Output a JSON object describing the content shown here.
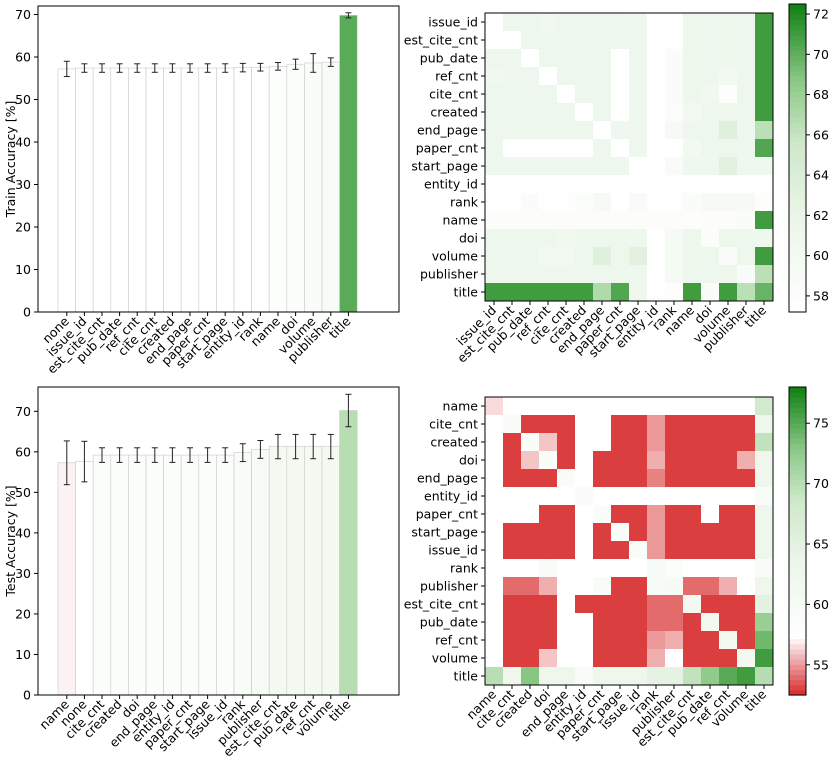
{
  "chart_data": [
    {
      "type": "bar",
      "id": "train-bar",
      "ylabel": "Train Accuracy [%]",
      "xlabel": "",
      "ylim": [
        0,
        72
      ],
      "yticks": [
        0,
        10,
        20,
        30,
        40,
        50,
        60,
        70
      ],
      "categories": [
        "none",
        "issue_id",
        "est_cite_cnt",
        "pub_date",
        "ref_cnt",
        "cite_cnt",
        "created",
        "end_page",
        "paper_cnt",
        "start_page",
        "entity_id",
        "rank",
        "name",
        "doi",
        "volume",
        "publisher",
        "title"
      ],
      "values": [
        57.2,
        57.4,
        57.4,
        57.4,
        57.4,
        57.4,
        57.4,
        57.4,
        57.4,
        57.4,
        57.5,
        57.6,
        57.8,
        58.3,
        58.6,
        58.8,
        69.8
      ],
      "errors": [
        1.8,
        1.0,
        1.0,
        1.0,
        1.0,
        1.0,
        1.0,
        1.0,
        1.0,
        1.0,
        1.0,
        0.9,
        0.9,
        1.2,
        2.2,
        1.0,
        0.6
      ],
      "colorbar_range": [
        57.2,
        72
      ]
    },
    {
      "type": "heatmap",
      "id": "train-heatmap",
      "labels": [
        "issue_id",
        "est_cite_cnt",
        "pub_date",
        "ref_cnt",
        "cite_cnt",
        "created",
        "end_page",
        "paper_cnt",
        "start_page",
        "entity_id",
        "rank",
        "name",
        "doi",
        "volume",
        "publisher",
        "title"
      ],
      "colorbar": {
        "min": 57.2,
        "max": 72.5,
        "ticks": [
          58,
          60,
          62,
          64,
          66,
          68,
          70,
          72
        ]
      },
      "values": [
        [
          57.4,
          61.2,
          61.2,
          60.8,
          61.2,
          61.2,
          61.2,
          61.2,
          61.0,
          57.4,
          57.5,
          61.5,
          61.2,
          61.5,
          61.2,
          71.0
        ],
        [
          57.4,
          57.4,
          61.2,
          61.2,
          61.2,
          61.2,
          61.2,
          61.2,
          61.0,
          57.4,
          57.5,
          61.5,
          61.2,
          61.5,
          61.2,
          71.0
        ],
        [
          61.2,
          61.2,
          57.4,
          61.2,
          61.2,
          61.2,
          61.2,
          57.6,
          61.0,
          57.4,
          58.5,
          61.5,
          61.2,
          61.5,
          61.2,
          71.0
        ],
        [
          60.8,
          61.2,
          61.2,
          57.4,
          61.2,
          61.2,
          61.2,
          57.6,
          61.0,
          57.4,
          58.5,
          61.5,
          61.2,
          60.5,
          61.2,
          71.0
        ],
        [
          61.2,
          61.2,
          61.2,
          61.2,
          57.4,
          61.2,
          61.2,
          57.6,
          61.0,
          57.4,
          58.5,
          61.5,
          60.8,
          57.8,
          61.2,
          71.0
        ],
        [
          61.2,
          61.2,
          61.2,
          61.2,
          61.2,
          57.4,
          61.2,
          57.6,
          61.0,
          57.4,
          58.2,
          60.5,
          61.2,
          61.5,
          61.2,
          71.0
        ],
        [
          61.2,
          61.2,
          61.2,
          61.2,
          61.2,
          61.2,
          57.4,
          61.0,
          61.0,
          57.4,
          59.5,
          61.5,
          61.2,
          63.5,
          61.2,
          66.5
        ],
        [
          61.2,
          57.6,
          57.6,
          57.6,
          57.6,
          57.6,
          61.0,
          57.4,
          61.0,
          57.4,
          52.0,
          60.5,
          61.2,
          61.5,
          61.2,
          70.5
        ],
        [
          61.0,
          61.0,
          61.0,
          61.0,
          61.0,
          61.0,
          61.0,
          61.0,
          57.4,
          57.4,
          59.0,
          61.0,
          61.0,
          63.0,
          61.0,
          61.0
        ],
        [
          57.4,
          57.4,
          57.4,
          57.4,
          57.4,
          57.4,
          57.4,
          57.4,
          57.4,
          57.5,
          57.5,
          57.5,
          57.5,
          57.5,
          57.5,
          57.5
        ],
        [
          57.5,
          57.5,
          58.5,
          57.5,
          57.5,
          58.2,
          59.5,
          52.0,
          59.0,
          57.5,
          57.6,
          58.5,
          59.5,
          59.5,
          59.5,
          57.8
        ],
        [
          58.0,
          58.0,
          58.0,
          58.0,
          58.0,
          58.0,
          58.0,
          58.0,
          58.0,
          58.0,
          58.0,
          57.8,
          58.0,
          58.0,
          58.5,
          71.0
        ],
        [
          61.2,
          61.2,
          61.2,
          61.2,
          60.8,
          61.2,
          61.2,
          61.2,
          61.0,
          57.5,
          59.5,
          61.5,
          58.3,
          61.5,
          61.2,
          61.0
        ],
        [
          61.5,
          61.5,
          61.5,
          60.5,
          60.5,
          61.5,
          63.5,
          61.5,
          63.0,
          57.5,
          59.5,
          61.5,
          61.5,
          58.6,
          61.5,
          71.0
        ],
        [
          61.2,
          61.2,
          61.2,
          61.2,
          61.2,
          61.2,
          61.2,
          61.2,
          61.0,
          57.5,
          59.5,
          61.5,
          61.2,
          61.5,
          58.8,
          66.5
        ],
        [
          71.0,
          71.0,
          71.0,
          71.0,
          71.0,
          71.0,
          67.0,
          70.5,
          61.0,
          57.5,
          57.8,
          71.0,
          58.5,
          71.0,
          66.5,
          69.8
        ]
      ]
    },
    {
      "type": "bar",
      "id": "test-bar",
      "ylabel": "Test Accuracy [%]",
      "xlabel": "",
      "ylim": [
        0,
        76
      ],
      "yticks": [
        0,
        10,
        20,
        30,
        40,
        50,
        60,
        70
      ],
      "categories": [
        "name",
        "none",
        "cite_cnt",
        "created",
        "doi",
        "end_page",
        "entity_id",
        "paper_cnt",
        "start_page",
        "issue_id",
        "rank",
        "publisher",
        "est_cite_cnt",
        "pub_date",
        "ref_cnt",
        "volume",
        "title"
      ],
      "values": [
        57.3,
        57.6,
        59.2,
        59.2,
        59.2,
        59.2,
        59.2,
        59.2,
        59.2,
        59.2,
        59.8,
        60.6,
        61.3,
        61.3,
        61.3,
        61.3,
        70.2
      ],
      "errors": [
        5.4,
        5.0,
        1.8,
        1.8,
        1.8,
        1.8,
        1.8,
        1.8,
        1.8,
        1.8,
        2.2,
        2.2,
        3.0,
        3.0,
        3.0,
        3.0,
        4.0
      ],
      "colorbar_range": [
        52.5,
        78
      ]
    },
    {
      "type": "heatmap",
      "id": "test-heatmap",
      "labels": [
        "name",
        "cite_cnt",
        "created",
        "doi",
        "end_page",
        "entity_id",
        "paper_cnt",
        "start_page",
        "issue_id",
        "rank",
        "publisher",
        "est_cite_cnt",
        "pub_date",
        "ref_cnt",
        "volume",
        "title"
      ],
      "colorbar": {
        "min": 52.5,
        "max": 78,
        "ticks": [
          55,
          60,
          65,
          70,
          75
        ]
      },
      "values": [
        [
          56.5,
          57.3,
          57.3,
          57.3,
          57.3,
          57.3,
          57.3,
          57.3,
          57.3,
          57.3,
          57.3,
          57.3,
          57.3,
          57.3,
          57.3,
          68.0
        ],
        [
          57.3,
          59.2,
          53.0,
          53.0,
          53.0,
          57.3,
          57.3,
          53.0,
          53.0,
          55.0,
          53.0,
          53.0,
          53.0,
          53.0,
          53.0,
          62.5
        ],
        [
          57.3,
          53.0,
          59.2,
          56.0,
          53.0,
          57.3,
          57.3,
          53.0,
          53.0,
          55.0,
          53.0,
          53.0,
          53.0,
          53.0,
          53.0,
          69.5
        ],
        [
          57.3,
          53.0,
          56.0,
          59.2,
          53.0,
          57.3,
          53.0,
          53.0,
          53.0,
          55.5,
          53.0,
          53.0,
          53.0,
          53.0,
          55.5,
          62.5
        ],
        [
          57.3,
          53.0,
          53.0,
          53.0,
          59.2,
          57.3,
          53.0,
          53.0,
          53.0,
          54.5,
          53.0,
          53.0,
          53.0,
          53.0,
          53.0,
          62.5
        ],
        [
          57.3,
          57.3,
          57.3,
          57.3,
          57.3,
          59.2,
          57.3,
          57.3,
          57.3,
          57.3,
          57.3,
          57.3,
          57.3,
          57.3,
          57.3,
          59.5
        ],
        [
          57.3,
          57.3,
          57.3,
          53.0,
          53.0,
          57.3,
          59.2,
          53.0,
          53.0,
          55.0,
          53.0,
          53.0,
          57.3,
          53.0,
          53.0,
          62.5
        ],
        [
          57.3,
          53.0,
          53.0,
          53.0,
          53.0,
          57.3,
          53.0,
          59.2,
          53.0,
          55.0,
          53.0,
          53.0,
          53.0,
          53.0,
          53.0,
          62.5
        ],
        [
          57.3,
          53.0,
          53.0,
          53.0,
          53.0,
          57.3,
          53.0,
          53.0,
          59.2,
          55.0,
          53.0,
          53.0,
          53.0,
          53.0,
          53.0,
          62.5
        ],
        [
          57.3,
          57.3,
          57.3,
          59.5,
          57.3,
          57.3,
          57.3,
          57.3,
          57.3,
          59.8,
          58.5,
          57.3,
          57.3,
          57.3,
          57.3,
          59.5
        ],
        [
          57.3,
          54.0,
          54.0,
          55.5,
          57.3,
          57.3,
          59.5,
          53.0,
          53.0,
          60.0,
          60.6,
          54.0,
          54.0,
          55.5,
          57.3,
          62.5
        ],
        [
          57.3,
          53.0,
          53.0,
          53.0,
          57.3,
          53.0,
          53.0,
          53.0,
          53.0,
          54.0,
          54.0,
          61.3,
          53.0,
          53.0,
          53.0,
          65.0
        ],
        [
          57.3,
          53.0,
          53.0,
          53.0,
          57.3,
          57.3,
          53.0,
          53.0,
          53.0,
          54.0,
          54.0,
          53.0,
          61.3,
          53.0,
          53.0,
          72.0
        ],
        [
          57.3,
          53.0,
          53.0,
          53.0,
          57.3,
          57.3,
          53.0,
          53.0,
          53.0,
          55.0,
          55.5,
          53.0,
          53.0,
          61.3,
          53.0,
          74.0
        ],
        [
          57.3,
          53.0,
          53.0,
          56.0,
          57.3,
          57.3,
          53.0,
          53.0,
          53.0,
          55.5,
          57.3,
          53.0,
          53.0,
          53.0,
          61.3,
          76.0
        ],
        [
          70.0,
          62.5,
          73.0,
          62.5,
          62.5,
          59.5,
          62.5,
          62.5,
          62.5,
          64.5,
          64.5,
          69.5,
          72.5,
          75.0,
          76.0,
          70.2
        ]
      ]
    }
  ]
}
